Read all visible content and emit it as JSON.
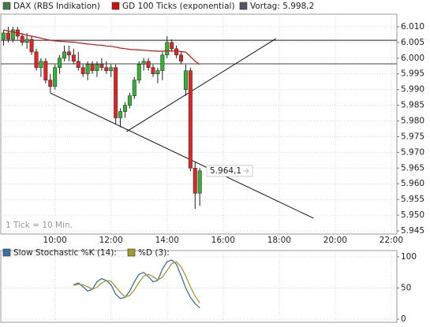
{
  "chart_data": [
    {
      "type": "candlestick",
      "x": [
        "08:10",
        "08:20",
        "08:30",
        "08:40",
        "08:50",
        "09:00",
        "09:10",
        "09:20",
        "09:30",
        "09:40",
        "09:50",
        "10:00",
        "10:10",
        "10:20",
        "10:30",
        "10:40",
        "10:50",
        "11:00",
        "11:10",
        "11:20",
        "11:30",
        "11:40",
        "11:50",
        "12:00",
        "12:10",
        "12:20",
        "12:30",
        "12:40",
        "12:50",
        "13:00",
        "13:10",
        "13:20",
        "13:30",
        "13:40",
        "13:50",
        "14:00",
        "14:10",
        "14:20",
        "14:30",
        "14:40",
        "14:50",
        "15:00",
        "15:10"
      ],
      "series": [
        {
          "name": "DAX (RBS Indikation)",
          "color": "#4a7a4a",
          "up_color": "#2fb52f",
          "down_color": "#e62222",
          "open": [
            6006,
            6008,
            6006,
            6009,
            6007,
            6005,
            6006,
            6002,
            5997,
            5999,
            5993,
            5991,
            5997,
            6000,
            6002,
            6001,
            5999,
            5997,
            5995,
            5998,
            5996,
            5998,
            5997,
            5996,
            5997,
            5981,
            5983,
            5985,
            5988,
            5993,
            5998,
            5999,
            5997,
            5995,
            5996,
            6001,
            6005,
            6003,
            6001,
            5990,
            5996,
            5965,
            5957
          ],
          "high": [
            6009,
            6010,
            6010,
            6010,
            6008,
            6008,
            6007,
            6003,
            6000,
            6000,
            5995,
            5998,
            6001,
            6004,
            6004,
            6003,
            6002,
            5998,
            5999,
            5999,
            5999,
            6000,
            5999,
            5998,
            5998,
            5984,
            5986,
            5989,
            5994,
            5999,
            6000,
            6000,
            5998,
            5997,
            6002,
            6007,
            6006,
            6004,
            6002,
            5998,
            5997,
            5967,
            5965
          ],
          "low": [
            6004,
            6005,
            6005,
            6006,
            6004,
            6003,
            6001,
            5996,
            5994,
            5992,
            5989,
            5990,
            5995,
            5999,
            5999,
            5998,
            5996,
            5994,
            5993,
            5995,
            5994,
            5996,
            5995,
            5994,
            5979,
            5978,
            5981,
            5984,
            5987,
            5992,
            5996,
            5996,
            5994,
            5992,
            5993,
            6000,
            6002,
            6000,
            5998,
            5988,
            5964,
            5952,
            5953
          ],
          "close": [
            6008,
            6006,
            6009,
            6007,
            6005,
            6006,
            6002,
            5997,
            5999,
            5993,
            5991,
            5997,
            6000,
            6002,
            6001,
            5999,
            5997,
            5995,
            5998,
            5996,
            5998,
            5997,
            5996,
            5997,
            5981,
            5983,
            5985,
            5988,
            5993,
            5998,
            5999,
            5997,
            5995,
            5996,
            6001,
            6005,
            6003,
            6001,
            5999,
            5996,
            5965,
            5957,
            5964.1
          ]
        },
        {
          "type": "line",
          "name": "GD 100 Ticks (exponential)",
          "color": "#cc1111",
          "values": [
            6009.0,
            6008.6,
            6008.3,
            6008.0,
            6007.7,
            6007.3,
            6007.0,
            6006.7,
            6006.4,
            6006.0,
            6005.7,
            6005.5,
            6005.4,
            6005.3,
            6005.2,
            6005.1,
            6004.9,
            6004.7,
            6004.5,
            6004.4,
            6004.2,
            6004.1,
            6003.9,
            6003.8,
            6003.5,
            6003.2,
            6003.0,
            6002.8,
            6002.7,
            6002.6,
            6002.5,
            6002.4,
            6002.3,
            6002.2,
            6002.2,
            6002.3,
            6002.3,
            6002.2,
            6002.1,
            6001.9,
            6000.5,
            5999.0,
            5998.0
          ]
        }
      ],
      "reference": {
        "name": "Vortag: 5.998,2",
        "value": 5998.2,
        "color": "#555566"
      },
      "hlines": [
        6005.7
      ],
      "lines": [
        {
          "x": [
            "09:50",
            "19:14"
          ],
          "y": [
            5988.9,
            5949.0
          ]
        },
        {
          "x": [
            "12:33",
            "17:53"
          ],
          "y": [
            5976.6,
            6006.2
          ]
        }
      ],
      "last": {
        "value": 5964.1,
        "label": "5.964,1"
      },
      "note": "1 Tick = 10 Min.",
      "xlim": [
        "08:04",
        "22:12"
      ],
      "xticks": [
        "10:00",
        "12:00",
        "14:00",
        "16:00",
        "18:00",
        "20:00",
        "22:00"
      ],
      "ylim": [
        5944,
        6014
      ],
      "yticks": [
        {
          "value": 5945,
          "label": "5.945"
        },
        {
          "value": 5950,
          "label": "5.950"
        },
        {
          "value": 5955,
          "label": "5.955"
        },
        {
          "value": 5960,
          "label": "5.960"
        },
        {
          "value": 5965,
          "label": "5.965"
        },
        {
          "value": 5970,
          "label": "5.970"
        },
        {
          "value": 5975,
          "label": "5.975"
        },
        {
          "value": 5980,
          "label": "5.980"
        },
        {
          "value": 5985,
          "label": "5.985"
        },
        {
          "value": 5990,
          "label": "5.990"
        },
        {
          "value": 5995,
          "label": "5.995"
        },
        {
          "value": 6000,
          "label": "6.000"
        },
        {
          "value": 6005,
          "label": "6.005"
        },
        {
          "value": 6010,
          "label": "6.010"
        }
      ],
      "grid": true
    },
    {
      "type": "line",
      "series": [
        {
          "name": "Slow Stochastic %K (14):",
          "color": "#3b6ea5",
          "values": [
            null,
            null,
            null,
            null,
            null,
            null,
            null,
            null,
            null,
            null,
            null,
            null,
            null,
            null,
            null,
            55,
            58,
            52,
            45,
            48,
            60,
            65,
            62,
            55,
            40,
            33,
            35,
            45,
            60,
            72,
            75,
            68,
            60,
            62,
            80,
            92,
            95,
            88,
            70,
            50,
            35,
            25,
            18
          ]
        },
        {
          "name": "%D (3):",
          "color": "#a39a2a",
          "values": [
            null,
            null,
            null,
            null,
            null,
            null,
            null,
            null,
            null,
            null,
            null,
            null,
            null,
            null,
            null,
            54,
            56,
            55,
            52,
            48,
            51,
            58,
            62,
            61,
            52,
            43,
            36,
            38,
            47,
            59,
            69,
            72,
            68,
            63,
            67,
            78,
            89,
            92,
            84,
            69,
            52,
            37,
            26
          ]
        }
      ],
      "ylim": [
        -5,
        110
      ],
      "yticks": [
        0,
        50,
        100
      ],
      "grid": true
    }
  ]
}
